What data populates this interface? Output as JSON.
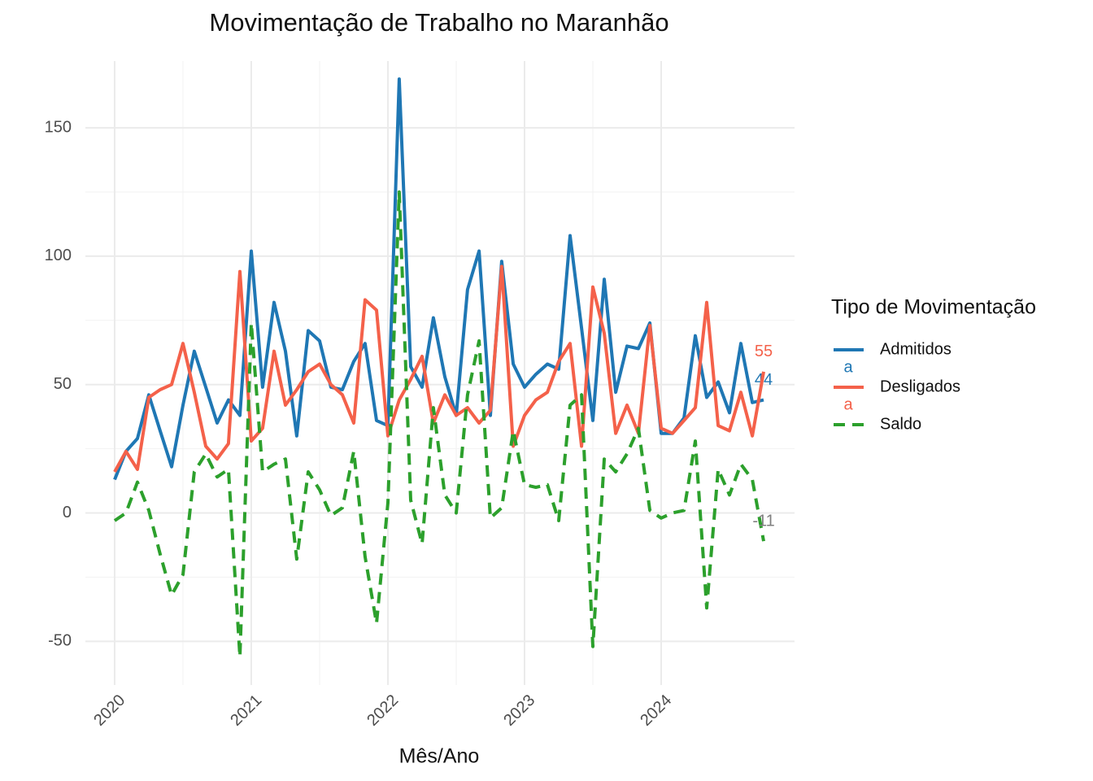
{
  "chart_data": {
    "type": "line",
    "title": "Movimentação de Trabalho no Maranhão",
    "x_label": "Mês/Ano",
    "legend_title": "Tipo de Movimentação",
    "legend_key_text": "a",
    "end_labels": true,
    "grid": true,
    "legend_position": "right",
    "x": [
      2020,
      2020.083,
      2020.167,
      2020.25,
      2020.333,
      2020.417,
      2020.5,
      2020.583,
      2020.667,
      2020.75,
      2020.833,
      2020.917,
      2021,
      2021.083,
      2021.167,
      2021.25,
      2021.333,
      2021.417,
      2021.5,
      2021.583,
      2021.667,
      2021.75,
      2021.833,
      2021.917,
      2022,
      2022.083,
      2022.167,
      2022.25,
      2022.333,
      2022.417,
      2022.5,
      2022.583,
      2022.667,
      2022.75,
      2022.833,
      2022.917,
      2023,
      2023.083,
      2023.167,
      2023.25,
      2023.333,
      2023.417,
      2023.5,
      2023.583,
      2023.667,
      2023.75,
      2023.833,
      2023.917,
      2024,
      2024.083,
      2024.167,
      2024.25,
      2024.333,
      2024.417,
      2024.5,
      2024.583,
      2024.667,
      2024.75
    ],
    "xlim": [
      2019.786,
      2024.976
    ],
    "xticks": [
      2020,
      2021,
      2022,
      2023,
      2024
    ],
    "ylim": [
      -67,
      176
    ],
    "yticks": [
      -50,
      0,
      50,
      100,
      150
    ],
    "series": [
      {
        "name": "Admitidos",
        "color": "#1f77b4",
        "dashed": false,
        "values": [
          13,
          24,
          29,
          46,
          32,
          18,
          42,
          63,
          49,
          35,
          44,
          38,
          102,
          49,
          82,
          63,
          30,
          71,
          67,
          49,
          48,
          59,
          66,
          36,
          34,
          169,
          57,
          49,
          76,
          53,
          38,
          87,
          102,
          38,
          98,
          58,
          49,
          54,
          58,
          56,
          108,
          72,
          36,
          91,
          47,
          65,
          64,
          74,
          31,
          31,
          37,
          69,
          45,
          51,
          39,
          66,
          43,
          44
        ]
      },
      {
        "name": "Desligados",
        "color": "#f4614a",
        "dashed": false,
        "values": [
          16,
          24,
          17,
          45,
          48,
          50,
          66,
          47,
          26,
          21,
          27,
          94,
          28,
          33,
          63,
          42,
          48,
          55,
          58,
          50,
          46,
          35,
          83,
          79,
          30,
          44,
          52,
          61,
          35,
          46,
          38,
          41,
          35,
          40,
          96,
          26,
          38,
          44,
          47,
          59,
          66,
          26,
          88,
          70,
          31,
          42,
          31,
          73,
          33,
          31,
          36,
          41,
          82,
          34,
          32,
          47,
          30,
          55
        ]
      },
      {
        "name": "Saldo",
        "color": "#2ca02c",
        "label_color": "#7f7f7f",
        "dashed": true,
        "values": [
          -3,
          0,
          12,
          1,
          -16,
          -32,
          -24,
          16,
          23,
          14,
          17,
          -56,
          74,
          16,
          19,
          21,
          -18,
          16,
          9,
          -1,
          2,
          24,
          -17,
          -43,
          4,
          125,
          5,
          -12,
          41,
          7,
          0,
          46,
          67,
          -2,
          2,
          32,
          11,
          10,
          11,
          -3,
          42,
          46,
          -52,
          21,
          16,
          23,
          33,
          1,
          -2,
          0,
          1,
          28,
          -37,
          17,
          7,
          19,
          13,
          -11
        ]
      }
    ]
  }
}
